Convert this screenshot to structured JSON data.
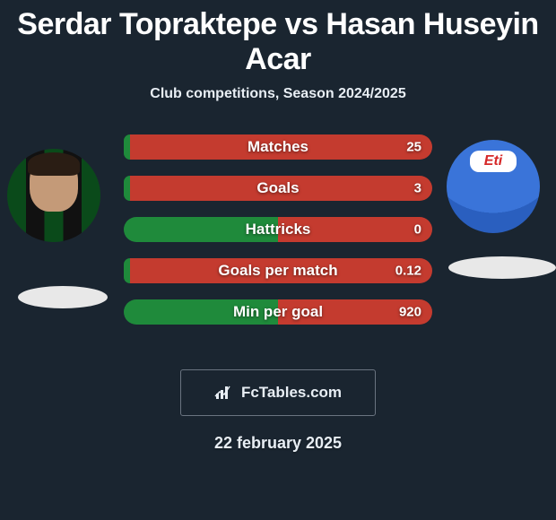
{
  "title": "Serdar Topraktepe vs Hasan Huseyin Acar",
  "subtitle": "Club competitions, Season 2024/2025",
  "player_left": {
    "name": "Serdar Topraktepe",
    "jersey_pattern": "green-black-stripes"
  },
  "player_right": {
    "name": "Hasan Huseyin Acar",
    "jersey_color": "#3a74d9",
    "sponsor_text": "Eti"
  },
  "metrics": [
    {
      "label": "Matches",
      "left_value": "",
      "right_value": "25",
      "left_pct": 2,
      "right_pct": 98,
      "left_color": "#1f8a3b",
      "right_color": "#c43b2f"
    },
    {
      "label": "Goals",
      "left_value": "",
      "right_value": "3",
      "left_pct": 2,
      "right_pct": 98,
      "left_color": "#1f8a3b",
      "right_color": "#c43b2f"
    },
    {
      "label": "Hattricks",
      "left_value": "",
      "right_value": "0",
      "left_pct": 50,
      "right_pct": 50,
      "left_color": "#1f8a3b",
      "right_color": "#c43b2f"
    },
    {
      "label": "Goals per match",
      "left_value": "",
      "right_value": "0.12",
      "left_pct": 2,
      "right_pct": 98,
      "left_color": "#1f8a3b",
      "right_color": "#c43b2f"
    },
    {
      "label": "Min per goal",
      "left_value": "",
      "right_value": "920",
      "left_pct": 50,
      "right_pct": 50,
      "left_color": "#1f8a3b",
      "right_color": "#c43b2f"
    }
  ],
  "watermark": "FcTables.com",
  "date": "22 february 2025",
  "colors": {
    "background": "#1a2530",
    "text": "#ffffff",
    "muted": "#e8eef4",
    "shadow": "#e8e8e8",
    "box_border": "#6a7480"
  }
}
